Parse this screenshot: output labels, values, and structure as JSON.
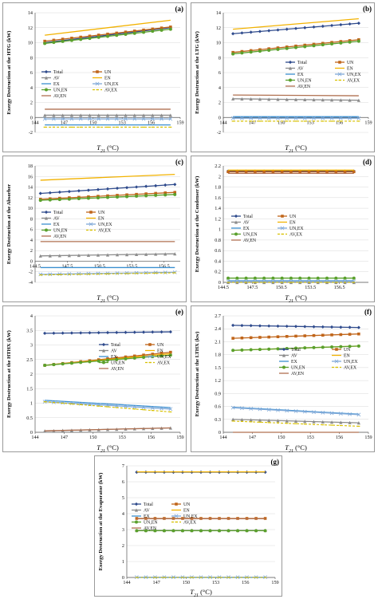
{
  "legend_labels": [
    "Total",
    "UN",
    "AV",
    "EN",
    "EX",
    "UN,EX",
    "UN,EN",
    "AV,EX",
    "AV,EN"
  ],
  "series_colors": {
    "Total": "#2e4a8c",
    "UN": "#c0651a",
    "AV": "#8c8c8c",
    "EN": "#f2b200",
    "EX": "#3a8fd0",
    "UN,EX": "#7fa9d8",
    "UN,EN": "#5aa02c",
    "AV,EX": "#d8c000",
    "AV,EN": "#b07050"
  },
  "chart_data": [
    {
      "panel": "(a)",
      "type": "line",
      "ylabel": "Exergy Destruction at the HTG (kW)",
      "xlabel": "T21 (°C)",
      "xlim": [
        144,
        159
      ],
      "ylim": [
        -2,
        14
      ],
      "xticks": [
        "144",
        "147",
        "150",
        "153",
        "156",
        "159"
      ],
      "yticks": [
        "-2",
        "0",
        "2",
        "4",
        "6",
        "8",
        "10",
        "12",
        "14"
      ],
      "legend": "center-left",
      "series": [
        {
          "name": "Total",
          "x": [
            145,
            158
          ],
          "y": [
            10.0,
            12.0
          ]
        },
        {
          "name": "UN",
          "x": [
            145,
            158
          ],
          "y": [
            10.2,
            12.1
          ]
        },
        {
          "name": "AV",
          "x": [
            145,
            158
          ],
          "y": [
            0.3,
            0.3
          ]
        },
        {
          "name": "EN",
          "x": [
            145,
            158
          ],
          "y": [
            11.0,
            13.0
          ]
        },
        {
          "name": "EX",
          "x": [
            145,
            158
          ],
          "y": [
            -1.0,
            -1.0
          ]
        },
        {
          "name": "UN,EX",
          "x": [
            145,
            158
          ],
          "y": [
            -0.2,
            -0.2
          ]
        },
        {
          "name": "UN,EN",
          "x": [
            145,
            158
          ],
          "y": [
            9.9,
            11.8
          ]
        },
        {
          "name": "AV,EX",
          "x": [
            145,
            158
          ],
          "y": [
            -1.3,
            -1.3
          ]
        },
        {
          "name": "AV,EN",
          "x": [
            145,
            158
          ],
          "y": [
            1.1,
            1.1
          ]
        }
      ]
    },
    {
      "panel": "(b)",
      "type": "line",
      "ylabel": "Exergy Destruction at the LTG (kW)",
      "xlabel": "T21 (°C)",
      "xlim": [
        144,
        159
      ],
      "ylim": [
        -2,
        14
      ],
      "xticks": [
        "144",
        "147",
        "150",
        "153",
        "156",
        "159"
      ],
      "yticks": [
        "-2",
        "0",
        "2",
        "4",
        "6",
        "8",
        "10",
        "12",
        "14"
      ],
      "legend": "center-left",
      "series": [
        {
          "name": "Total",
          "x": [
            145,
            158
          ],
          "y": [
            11.2,
            12.6
          ]
        },
        {
          "name": "UN",
          "x": [
            145,
            158
          ],
          "y": [
            8.7,
            10.4
          ]
        },
        {
          "name": "AV",
          "x": [
            145,
            158
          ],
          "y": [
            2.5,
            2.3
          ]
        },
        {
          "name": "EN",
          "x": [
            145,
            158
          ],
          "y": [
            11.8,
            13.2
          ]
        },
        {
          "name": "EX",
          "x": [
            145,
            158
          ],
          "y": [
            0.1,
            0.1
          ]
        },
        {
          "name": "UN,EX",
          "x": [
            145,
            158
          ],
          "y": [
            -0.1,
            -0.1
          ]
        },
        {
          "name": "UN,EN",
          "x": [
            145,
            158
          ],
          "y": [
            8.5,
            10.2
          ]
        },
        {
          "name": "AV,EX",
          "x": [
            145,
            158
          ],
          "y": [
            -0.5,
            -0.5
          ]
        },
        {
          "name": "AV,EN",
          "x": [
            145,
            158
          ],
          "y": [
            3.0,
            2.9
          ]
        }
      ]
    },
    {
      "panel": "(c)",
      "type": "line",
      "ylabel": "Exergy Destruction at the Absorber",
      "xlabel": "T21 (°C)",
      "xlim": [
        144.5,
        158
      ],
      "ylim": [
        -4,
        18
      ],
      "xticks": [
        "144.5",
        "147.5",
        "150.5",
        "153.5",
        "156.5"
      ],
      "yticks": [
        "-4",
        "-2",
        "0",
        "2",
        "4",
        "6",
        "8",
        "10",
        "12",
        "14",
        "16",
        "18"
      ],
      "legend": "center-left",
      "series": [
        {
          "name": "Total",
          "x": [
            145,
            157.5
          ],
          "y": [
            12.8,
            14.5
          ]
        },
        {
          "name": "UN",
          "x": [
            145,
            157.5
          ],
          "y": [
            11.7,
            13.0
          ]
        },
        {
          "name": "AV",
          "x": [
            145,
            157.5
          ],
          "y": [
            1.0,
            1.4
          ]
        },
        {
          "name": "EN",
          "x": [
            145,
            157.5
          ],
          "y": [
            15.3,
            16.4
          ]
        },
        {
          "name": "EX",
          "x": [
            145,
            157.5
          ],
          "y": [
            -1.2,
            -1.2
          ]
        },
        {
          "name": "UN,EX",
          "x": [
            145,
            157.5
          ],
          "y": [
            -2.5,
            -2.1
          ]
        },
        {
          "name": "UN,EN",
          "x": [
            145,
            157.5
          ],
          "y": [
            11.5,
            12.6
          ]
        },
        {
          "name": "AV,EX",
          "x": [
            145,
            157.5
          ],
          "y": [
            -2.6,
            -2.2
          ]
        },
        {
          "name": "AV,EN",
          "x": [
            145,
            157.5
          ],
          "y": [
            3.7,
            3.7
          ]
        }
      ]
    },
    {
      "panel": "(d)",
      "type": "line",
      "ylabel": "Exergy Destruction at the Condenser (kW)",
      "xlabel": "T21 (°C)",
      "xlim": [
        144.5,
        159.5
      ],
      "ylim": [
        0,
        2.2
      ],
      "xticks": [
        "144.5",
        "147.5",
        "150.5",
        "153.5",
        "156.5"
      ],
      "yticks": [
        "0",
        "0.2",
        "0.4",
        "0.6",
        "0.8",
        "1",
        "1.2",
        "1.4",
        "1.6",
        "1.8",
        "2",
        "2.2"
      ],
      "legend": "center-left",
      "series": [
        {
          "name": "Total",
          "x": [
            145,
            158
          ],
          "y": [
            2.1,
            2.1
          ]
        },
        {
          "name": "UN",
          "x": [
            145,
            158
          ],
          "y": [
            2.09,
            2.09
          ]
        },
        {
          "name": "AV",
          "x": [
            145,
            158
          ],
          "y": [
            0.0,
            0.0
          ]
        },
        {
          "name": "EN",
          "x": [
            145,
            158
          ],
          "y": [
            2.12,
            2.12
          ]
        },
        {
          "name": "EX",
          "x": [
            145,
            158
          ],
          "y": [
            0.03,
            0.03
          ]
        },
        {
          "name": "UN,EX",
          "x": [
            145,
            158
          ],
          "y": [
            0.02,
            0.02
          ]
        },
        {
          "name": "UN,EN",
          "x": [
            145,
            158
          ],
          "y": [
            0.08,
            0.08
          ]
        },
        {
          "name": "AV,EX",
          "x": [
            145,
            158
          ],
          "y": [
            0.0,
            0.0
          ]
        },
        {
          "name": "AV,EN",
          "x": [
            145,
            158
          ],
          "y": [
            2.06,
            2.06
          ]
        }
      ]
    },
    {
      "panel": "(e)",
      "type": "line",
      "ylabel": "Exergy Destruction at the HTHX (kW)",
      "xlabel": "T21 (°C)",
      "xlim": [
        144,
        159
      ],
      "ylim": [
        0,
        4
      ],
      "xticks": [
        "144",
        "147",
        "150",
        "153",
        "156",
        "159"
      ],
      "yticks": [
        "0",
        "0.5",
        "1",
        "1.5",
        "2",
        "2.5",
        "3",
        "3.5",
        "4"
      ],
      "legend": "center-right",
      "series": [
        {
          "name": "Total",
          "x": [
            145,
            158
          ],
          "y": [
            3.4,
            3.45
          ]
        },
        {
          "name": "UN",
          "x": [
            145,
            158
          ],
          "y": [
            2.3,
            2.75
          ]
        },
        {
          "name": "AV",
          "x": [
            145,
            158
          ],
          "y": [
            0.05,
            0.15
          ]
        },
        {
          "name": "EN",
          "x": [
            145,
            158
          ],
          "y": [
            2.3,
            2.7
          ]
        },
        {
          "name": "EX",
          "x": [
            145,
            158
          ],
          "y": [
            1.1,
            0.85
          ]
        },
        {
          "name": "UN,EX",
          "x": [
            145,
            158
          ],
          "y": [
            1.05,
            0.8
          ]
        },
        {
          "name": "UN,EN",
          "x": [
            145,
            158
          ],
          "y": [
            2.3,
            2.65
          ]
        },
        {
          "name": "AV,EX",
          "x": [
            145,
            158
          ],
          "y": [
            1.05,
            0.7
          ]
        },
        {
          "name": "AV,EN",
          "x": [
            145,
            158
          ],
          "y": [
            0.05,
            0.15
          ]
        }
      ]
    },
    {
      "panel": "(f)",
      "type": "line",
      "ylabel": "Exergy Destruction at the LTHX (kw)",
      "xlabel": "T21 (°C)",
      "xlim": [
        144,
        159
      ],
      "ylim": [
        0,
        2.7
      ],
      "xticks": [
        "144",
        "147",
        "150",
        "153",
        "156",
        "159"
      ],
      "yticks": [
        "0",
        "0.3",
        "0.6",
        "0.9",
        "1.2",
        "1.5",
        "1.8",
        "2.1",
        "2.4",
        "2.7"
      ],
      "legend": "center-right",
      "series": [
        {
          "name": "Total",
          "x": [
            145,
            158
          ],
          "y": [
            2.48,
            2.43
          ]
        },
        {
          "name": "UN",
          "x": [
            145,
            158
          ],
          "y": [
            2.18,
            2.28
          ]
        },
        {
          "name": "AV",
          "x": [
            145,
            158
          ],
          "y": [
            0.3,
            0.22
          ]
        },
        {
          "name": "EN",
          "x": [
            145,
            158
          ],
          "y": [
            1.9,
            2.0
          ]
        },
        {
          "name": "EX",
          "x": [
            145,
            158
          ],
          "y": [
            0.58,
            0.42
          ]
        },
        {
          "name": "UN,EX",
          "x": [
            145,
            158
          ],
          "y": [
            0.57,
            0.41
          ]
        },
        {
          "name": "UN,EN",
          "x": [
            145,
            158
          ],
          "y": [
            1.9,
            2.0
          ]
        },
        {
          "name": "AV,EX",
          "x": [
            145,
            158
          ],
          "y": [
            0.26,
            0.14
          ]
        },
        {
          "name": "AV,EN",
          "x": [
            145,
            158
          ],
          "y": [
            0.0,
            0.0
          ]
        }
      ]
    },
    {
      "panel": "(g)",
      "type": "line",
      "ylabel": "Exergy Destruction at the Evaporator (kW)",
      "xlabel": "T21 (°C)",
      "xlim": [
        144,
        159
      ],
      "ylim": [
        0,
        7
      ],
      "xticks": [
        "144",
        "147",
        "150",
        "153",
        "156",
        "159"
      ],
      "yticks": [
        "0",
        "1",
        "2",
        "3",
        "4",
        "5",
        "6",
        "7"
      ],
      "legend": "lower-left",
      "series": [
        {
          "name": "Total",
          "x": [
            145,
            158
          ],
          "y": [
            6.6,
            6.6
          ]
        },
        {
          "name": "UN",
          "x": [
            145,
            158
          ],
          "y": [
            3.7,
            3.7
          ]
        },
        {
          "name": "AV",
          "x": [
            145,
            158
          ],
          "y": [
            2.95,
            2.95
          ]
        },
        {
          "name": "EN",
          "x": [
            145,
            158
          ],
          "y": [
            6.62,
            6.62
          ]
        },
        {
          "name": "EX",
          "x": [
            145,
            158
          ],
          "y": [
            0.0,
            0.0
          ]
        },
        {
          "name": "UN,EX",
          "x": [
            145,
            158
          ],
          "y": [
            0.02,
            0.02
          ]
        },
        {
          "name": "UN,EN",
          "x": [
            145,
            158
          ],
          "y": [
            2.93,
            2.93
          ]
        },
        {
          "name": "AV,EX",
          "x": [
            145,
            158
          ],
          "y": [
            0.0,
            0.0
          ]
        },
        {
          "name": "AV,EN",
          "x": [
            145,
            158
          ],
          "y": [
            3.68,
            3.68
          ]
        }
      ]
    }
  ]
}
